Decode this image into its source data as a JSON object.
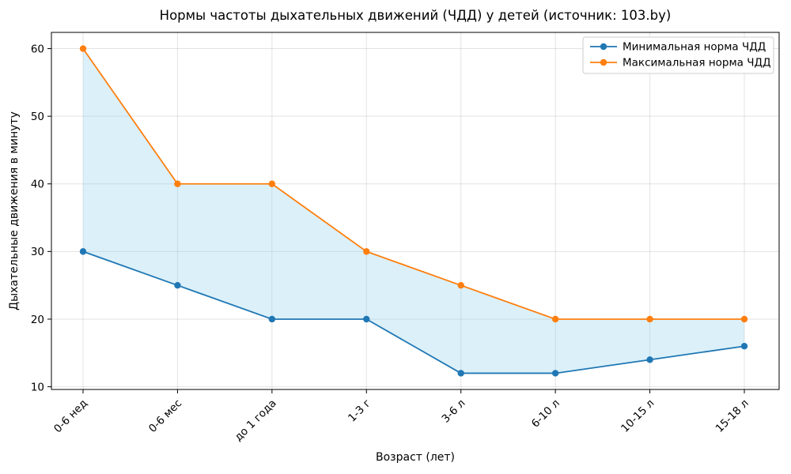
{
  "chart_data": {
    "type": "line",
    "title": "Нормы частоты дыхательных движений (ЧДД) у детей (источник: 103.by)",
    "xlabel": "Возраст (лет)",
    "ylabel": "Дыхательные движения в минуту",
    "categories": [
      "0-6 нед",
      "0-6 мес",
      "до 1 года",
      "1-3 г",
      "3-6 л",
      "6-10 л",
      "10-15 л",
      "15-18 л"
    ],
    "series": [
      {
        "name": "Минимальная норма ЧДД",
        "color": "#1f77b4",
        "values": [
          30,
          25,
          20,
          20,
          12,
          12,
          14,
          16
        ]
      },
      {
        "name": "Максимальная норма ЧДД",
        "color": "#ff7f0e",
        "values": [
          60,
          40,
          40,
          30,
          25,
          20,
          20,
          20
        ]
      }
    ],
    "fill_between": {
      "color": "#87ceeb",
      "opacity": 0.3
    },
    "yticks": [
      10,
      20,
      30,
      40,
      50,
      60
    ],
    "ylim": [
      9.6,
      62.4
    ],
    "grid": true,
    "grid_color": "rgba(128,128,128,0.22)",
    "spine_color": "#000000",
    "legend_position": "upper right",
    "marker": "o",
    "x_tick_rotation": 45
  }
}
